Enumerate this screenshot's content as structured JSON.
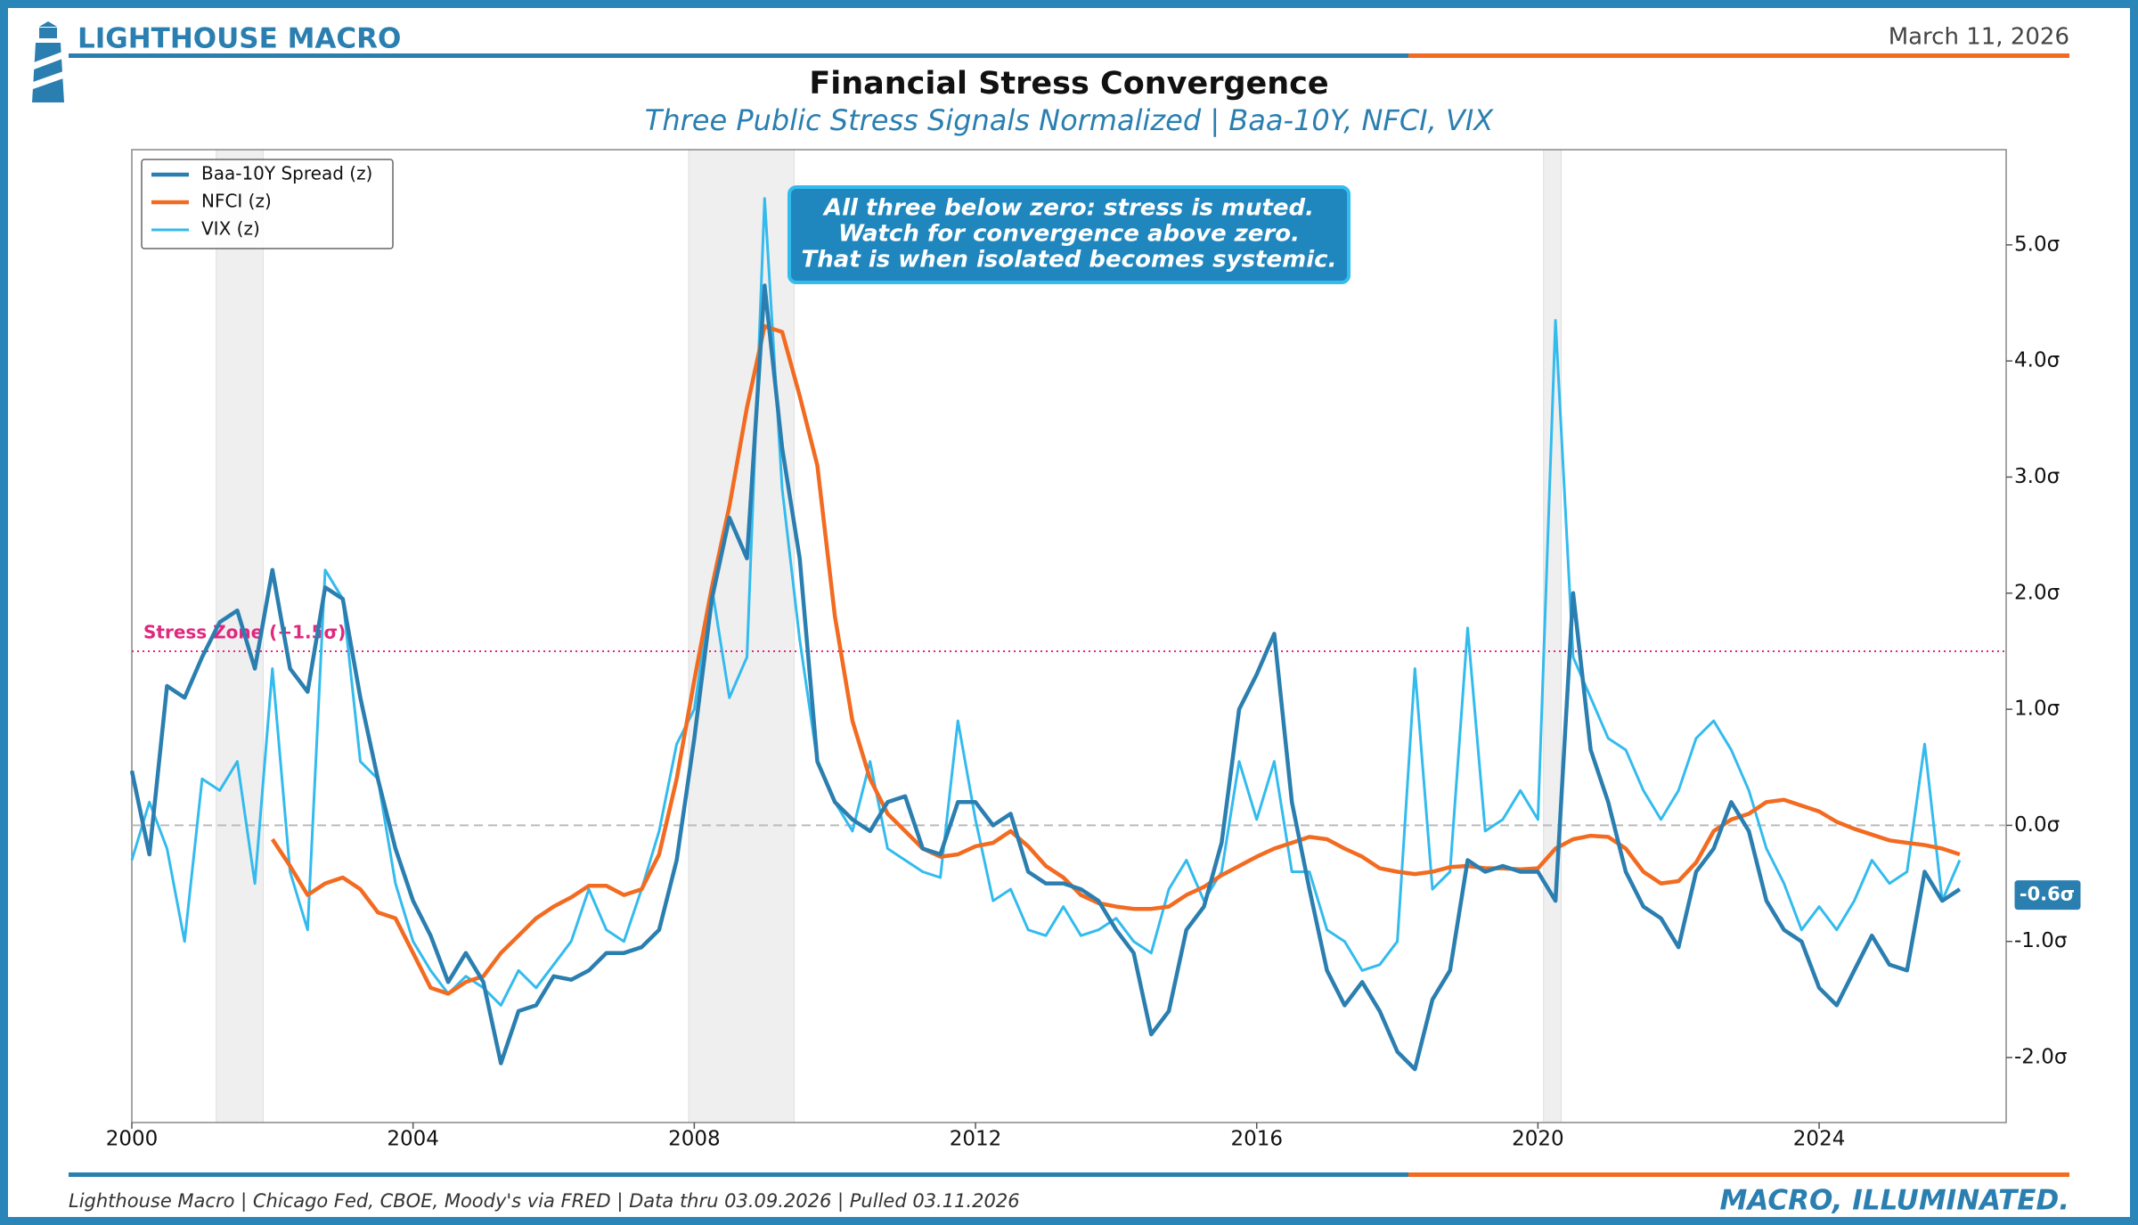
{
  "brand": "LIGHTHOUSE MACRO",
  "date": "March 11, 2026",
  "tagline": "MACRO, ILLUMINATED.",
  "footer": "Lighthouse Macro | Chicago Fed, CBOE, Moody's via FRED | Data thru 03.09.2026 | Pulled 03.11.2026",
  "chart_data": {
    "type": "line",
    "title": "Financial Stress Convergence",
    "subtitle": "Three Public Stress Signals Normalized | Baa-10Y, NFCI, VIX",
    "annotation": [
      "All three below zero: stress is muted.",
      "Watch for convergence above zero.",
      "That is when isolated becomes systemic."
    ],
    "stress_zone": {
      "value": 1.5,
      "label": "Stress Zone (+1.5σ)"
    },
    "latest_label": {
      "value": -0.6,
      "label": "-0.6σ"
    },
    "recessions": [
      [
        2001.2,
        2001.87
      ],
      [
        2007.92,
        2009.42
      ],
      [
        2020.08,
        2020.33
      ]
    ],
    "legend": "upper left",
    "grid": false,
    "xlim": [
      2000,
      2026.66
    ],
    "xticks": [
      2000,
      2004,
      2008,
      2012,
      2016,
      2020,
      2024
    ],
    "ylim": [
      -2.56,
      5.82
    ],
    "yticks": [
      {
        "value": -2,
        "label": "-2.0σ"
      },
      {
        "value": -1,
        "label": "-1.0σ"
      },
      {
        "value": 0,
        "label": "0.0σ"
      },
      {
        "value": 1,
        "label": "1.0σ"
      },
      {
        "value": 2,
        "label": "2.0σ"
      },
      {
        "value": 3,
        "label": "3.0σ"
      },
      {
        "value": 4,
        "label": "4.0σ"
      },
      {
        "value": 5,
        "label": "5.0σ"
      }
    ],
    "x": [
      2000,
      2000.25,
      2000.5,
      2000.75,
      2001,
      2001.25,
      2001.5,
      2001.75,
      2002,
      2002.25,
      2002.5,
      2002.75,
      2003,
      2003.25,
      2003.5,
      2003.75,
      2004,
      2004.25,
      2004.5,
      2004.75,
      2005,
      2005.25,
      2005.5,
      2005.75,
      2006,
      2006.25,
      2006.5,
      2006.75,
      2007,
      2007.25,
      2007.5,
      2007.75,
      2008,
      2008.25,
      2008.5,
      2008.75,
      2009,
      2009.25,
      2009.5,
      2009.75,
      2010,
      2010.25,
      2010.5,
      2010.75,
      2011,
      2011.25,
      2011.5,
      2011.75,
      2012,
      2012.25,
      2012.5,
      2012.75,
      2013,
      2013.25,
      2013.5,
      2013.75,
      2014,
      2014.25,
      2014.5,
      2014.75,
      2015,
      2015.25,
      2015.5,
      2015.75,
      2016,
      2016.25,
      2016.5,
      2016.75,
      2017,
      2017.25,
      2017.5,
      2017.75,
      2018,
      2018.25,
      2018.5,
      2018.75,
      2019,
      2019.25,
      2019.5,
      2019.75,
      2020,
      2020.25,
      2020.5,
      2020.75,
      2021,
      2021.25,
      2021.5,
      2021.75,
      2022,
      2022.25,
      2022.5,
      2022.75,
      2023,
      2023.25,
      2023.5,
      2023.75,
      2024,
      2024.25,
      2024.5,
      2024.75,
      2025,
      2025.25,
      2025.5,
      2025.75,
      2026
    ],
    "series": [
      {
        "name": "Baa-10Y Spread (z)",
        "color": "#2a7fb0",
        "width": 4.5,
        "values": [
          0.47,
          -0.25,
          1.2,
          1.1,
          1.45,
          1.75,
          1.85,
          1.35,
          2.2,
          1.35,
          1.15,
          2.05,
          1.95,
          1.1,
          0.4,
          -0.2,
          -0.65,
          -0.95,
          -1.35,
          -1.1,
          -1.35,
          -2.05,
          -1.6,
          -1.55,
          -1.3,
          -1.33,
          -1.25,
          -1.1,
          -1.1,
          -1.05,
          -0.9,
          -0.3,
          0.75,
          1.95,
          2.65,
          2.3,
          4.65,
          3.25,
          2.3,
          0.55,
          0.2,
          0.05,
          -0.05,
          0.2,
          0.25,
          -0.2,
          -0.25,
          0.2,
          0.2,
          0,
          0.1,
          -0.4,
          -0.5,
          -0.5,
          -0.55,
          -0.65,
          -0.9,
          -1.1,
          -1.8,
          -1.6,
          -0.9,
          -0.7,
          -0.15,
          1.0,
          1.3,
          1.65,
          0.2,
          -0.55,
          -1.25,
          -1.55,
          -1.35,
          -1.6,
          -1.95,
          -2.1,
          -1.5,
          -1.25,
          -0.3,
          -0.4,
          -0.35,
          -0.4,
          -0.4,
          -0.65,
          2.0,
          0.65,
          0.2,
          -0.4,
          -0.7,
          -0.8,
          -1.05,
          -0.4,
          -0.2,
          0.2,
          -0.05,
          -0.65,
          -0.9,
          -1.0,
          -1.4,
          -1.55,
          -1.25,
          -0.95,
          -1.2,
          -1.25,
          -0.4,
          -0.65,
          -0.55
        ]
      },
      {
        "name": "NFCI (z)",
        "color": "#f26b21",
        "width": 4.5,
        "values": [
          null,
          null,
          null,
          null,
          null,
          null,
          null,
          null,
          -0.12,
          -0.35,
          -0.6,
          -0.5,
          -0.45,
          -0.55,
          -0.75,
          -0.8,
          -1.1,
          -1.4,
          -1.45,
          -1.35,
          -1.3,
          -1.1,
          -0.95,
          -0.8,
          -0.7,
          -0.62,
          -0.52,
          -0.52,
          -0.6,
          -0.55,
          -0.25,
          0.4,
          1.25,
          2.05,
          2.75,
          3.6,
          4.3,
          4.25,
          3.7,
          3.1,
          1.8,
          0.9,
          0.4,
          0.1,
          -0.05,
          -0.2,
          -0.27,
          -0.25,
          -0.18,
          -0.15,
          -0.05,
          -0.18,
          -0.35,
          -0.45,
          -0.6,
          -0.67,
          -0.7,
          -0.72,
          -0.72,
          -0.7,
          -0.6,
          -0.53,
          -0.43,
          -0.35,
          -0.27,
          -0.2,
          -0.15,
          -0.1,
          -0.12,
          -0.2,
          -0.27,
          -0.37,
          -0.4,
          -0.42,
          -0.4,
          -0.36,
          -0.35,
          -0.37,
          -0.37,
          -0.38,
          -0.37,
          -0.2,
          -0.12,
          -0.09,
          -0.1,
          -0.2,
          -0.4,
          -0.5,
          -0.48,
          -0.32,
          -0.05,
          0.05,
          0.1,
          0.2,
          0.22,
          0.17,
          0.12,
          0.03,
          -0.03,
          -0.08,
          -0.13,
          -0.15,
          -0.17,
          -0.2,
          -0.25
        ]
      },
      {
        "name": "VIX (z)",
        "color": "#33bbee",
        "width": 3,
        "values": [
          -0.3,
          0.2,
          -0.2,
          -1.0,
          0.4,
          0.3,
          0.55,
          -0.5,
          1.35,
          -0.4,
          -0.9,
          2.2,
          1.95,
          0.55,
          0.4,
          -0.5,
          -1.0,
          -1.25,
          -1.45,
          -1.3,
          -1.4,
          -1.55,
          -1.25,
          -1.4,
          -1.2,
          -1.0,
          -0.55,
          -0.9,
          -1.0,
          -0.55,
          -0.05,
          0.7,
          1.0,
          2.05,
          1.1,
          1.45,
          5.4,
          2.9,
          1.6,
          0.55,
          0.2,
          -0.05,
          0.55,
          -0.2,
          -0.3,
          -0.4,
          -0.45,
          0.9,
          0.05,
          -0.65,
          -0.55,
          -0.9,
          -0.95,
          -0.7,
          -0.95,
          -0.9,
          -0.8,
          -1.0,
          -1.1,
          -0.55,
          -0.3,
          -0.65,
          -0.4,
          0.55,
          0.05,
          0.55,
          -0.4,
          -0.4,
          -0.9,
          -1.0,
          -1.25,
          -1.2,
          -1.0,
          1.35,
          -0.55,
          -0.4,
          1.7,
          -0.05,
          0.05,
          0.3,
          0.05,
          4.35,
          1.45,
          1.1,
          0.75,
          0.65,
          0.3,
          0.05,
          0.3,
          0.75,
          0.9,
          0.65,
          0.3,
          -0.2,
          -0.5,
          -0.9,
          -0.7,
          -0.9,
          -0.65,
          -0.3,
          -0.5,
          -0.4,
          0.7,
          -0.65,
          -0.3
        ]
      }
    ]
  }
}
